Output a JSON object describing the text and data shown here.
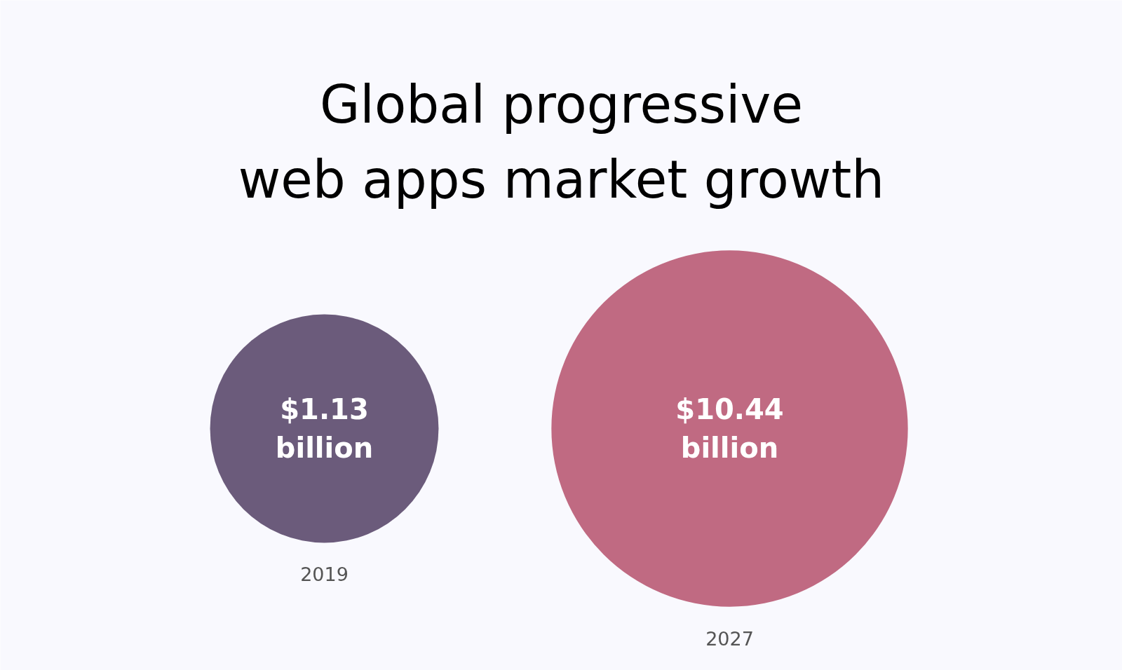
{
  "chart_data": {
    "type": "other",
    "title": "Global progressive web apps market growth",
    "categories": [
      "2019",
      "2027"
    ],
    "values": [
      1.13,
      10.44
    ],
    "colors": [
      "#6b5b7b",
      "#c06a82"
    ],
    "value_labels": [
      "$1.13 billion",
      "$10.44 billion"
    ]
  }
}
